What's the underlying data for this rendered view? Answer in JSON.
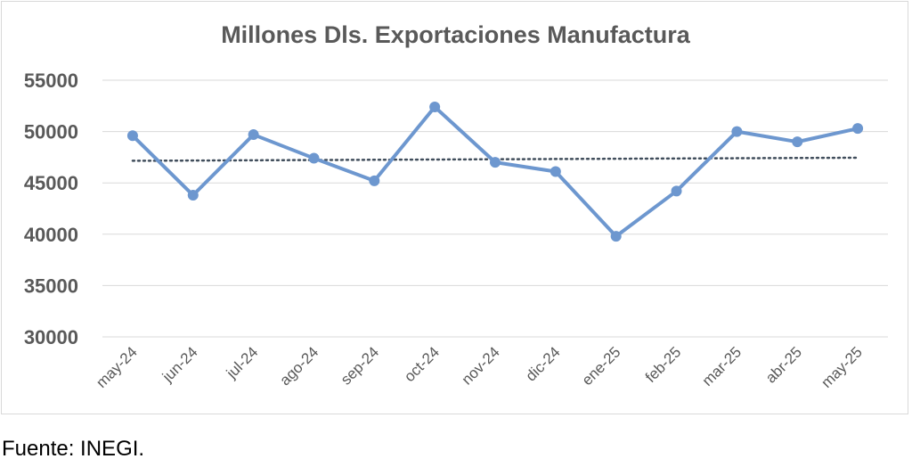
{
  "chart_data": {
    "type": "line",
    "title": "Millones Dls. Exportaciones Manufactura",
    "xlabel": "",
    "ylabel": "",
    "categories": [
      "may-24",
      "jun-24",
      "jul-24",
      "ago-24",
      "sep-24",
      "oct-24",
      "nov-24",
      "dic-24",
      "ene-25",
      "feb-25",
      "mar-25",
      "abr-25",
      "may-25"
    ],
    "series": [
      {
        "values": [
          49600,
          43800,
          49700,
          47400,
          45200,
          52400,
          47000,
          46100,
          39800,
          44200,
          50000,
          49000,
          50300
        ]
      }
    ],
    "trendline": {
      "style": "dotted",
      "start": 47150,
      "end": 47450
    },
    "yticks": [
      "55000",
      "50000",
      "45000",
      "40000",
      "35000",
      "30000"
    ],
    "ylim": [
      30000,
      55000
    ],
    "grid": true,
    "legend": "none",
    "colors": {
      "line": "#6d97cf",
      "trend": "#404d5b",
      "grid": "#d9d9d9",
      "text": "#595959"
    }
  },
  "source": "Fuente: INEGI."
}
